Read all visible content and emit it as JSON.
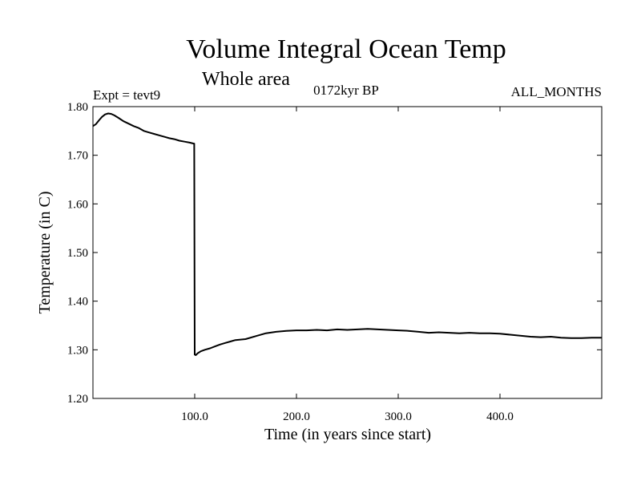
{
  "chart_data": {
    "type": "line",
    "title": "Volume Integral Ocean Temp",
    "subtitle": "Whole area",
    "annotations": {
      "experiment": "Expt = tevt9",
      "period": "0172kyr BP",
      "months": "ALL_MONTHS"
    },
    "xlabel": "Time (in years since start)",
    "ylabel": "Temperature (in C)",
    "xlim": [
      0,
      500
    ],
    "ylim": [
      1.2,
      1.8
    ],
    "x_ticks": [
      100,
      200,
      300,
      400
    ],
    "x_tick_labels": [
      "100.0",
      "200.0",
      "300.0",
      "400.0"
    ],
    "y_ticks": [
      1.2,
      1.3,
      1.4,
      1.5,
      1.6,
      1.7,
      1.8
    ],
    "y_tick_labels": [
      "1.20",
      "1.30",
      "1.40",
      "1.50",
      "1.60",
      "1.70",
      "1.80"
    ],
    "grid": false,
    "line_color": "#000000",
    "series": [
      {
        "x": [
          0,
          3,
          6,
          9,
          12,
          15,
          18,
          21,
          25,
          30,
          35,
          40,
          45,
          50,
          55,
          60,
          65,
          70,
          75,
          80,
          85,
          90,
          95,
          99,
          99.5,
          100,
          101,
          103,
          106,
          110,
          115,
          120,
          125,
          130,
          135,
          140,
          145,
          150,
          160,
          170,
          180,
          190,
          200,
          210,
          220,
          230,
          240,
          250,
          260,
          270,
          280,
          290,
          300,
          310,
          320,
          330,
          340,
          350,
          360,
          370,
          380,
          390,
          400,
          410,
          420,
          430,
          440,
          450,
          460,
          470,
          480,
          490,
          500
        ],
        "y": [
          1.76,
          1.764,
          1.772,
          1.779,
          1.784,
          1.786,
          1.785,
          1.782,
          1.777,
          1.77,
          1.765,
          1.76,
          1.756,
          1.75,
          1.747,
          1.744,
          1.741,
          1.738,
          1.735,
          1.733,
          1.73,
          1.728,
          1.726,
          1.724,
          1.724,
          1.29,
          1.289,
          1.293,
          1.297,
          1.3,
          1.303,
          1.307,
          1.311,
          1.314,
          1.317,
          1.32,
          1.321,
          1.322,
          1.328,
          1.334,
          1.337,
          1.339,
          1.34,
          1.34,
          1.341,
          1.34,
          1.342,
          1.341,
          1.342,
          1.343,
          1.342,
          1.341,
          1.34,
          1.339,
          1.337,
          1.335,
          1.336,
          1.335,
          1.334,
          1.335,
          1.334,
          1.334,
          1.333,
          1.331,
          1.329,
          1.327,
          1.326,
          1.327,
          1.325,
          1.324,
          1.324,
          1.325,
          1.325
        ]
      }
    ]
  }
}
